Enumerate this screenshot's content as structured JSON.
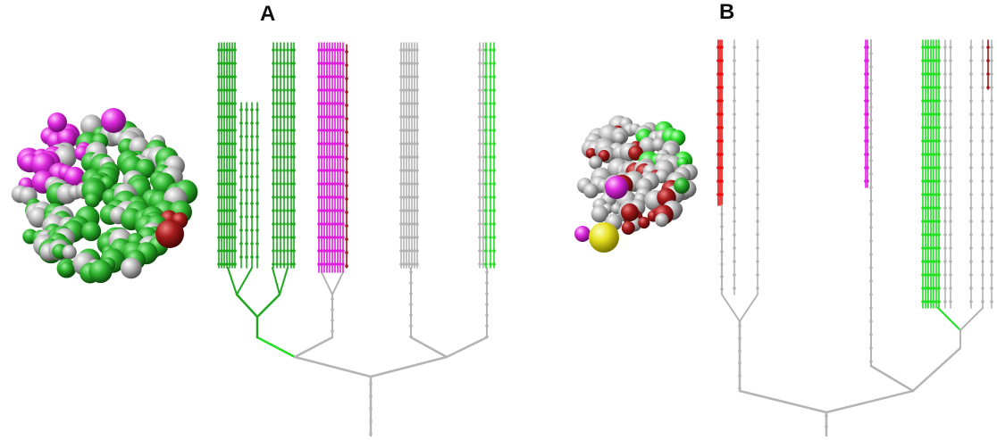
{
  "panels": [
    {
      "label": "A",
      "cluster_colors": [
        "green",
        "magenta",
        "silver",
        "brown"
      ],
      "lineage_colors": [
        "green",
        "magenta",
        "silver",
        "brown",
        "bright-green"
      ]
    },
    {
      "label": "B",
      "cluster_colors": [
        "silver",
        "brown",
        "green",
        "magenta",
        "yellow"
      ],
      "lineage_colors": [
        "red",
        "silver",
        "magenta",
        "bright-green",
        "brown"
      ]
    }
  ],
  "colors": {
    "green": "#1fa81f",
    "bright_green": "#22e022",
    "magenta": "#e01ee0",
    "silver": "#b4b4b4",
    "brown": "#a01818",
    "red": "#e81010",
    "yellow": "#e8e010"
  }
}
